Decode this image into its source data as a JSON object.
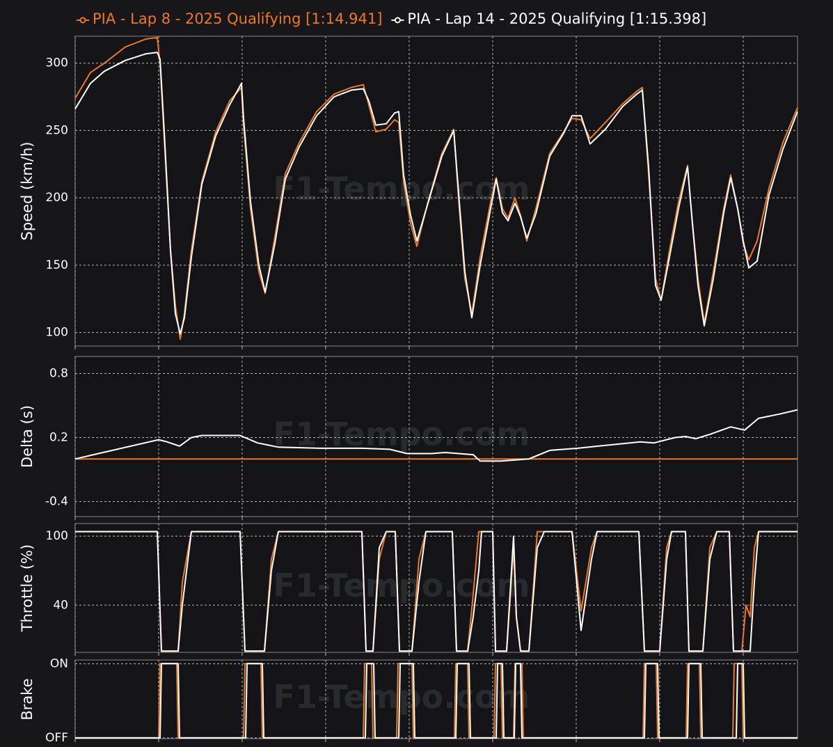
{
  "watermark": "F1-Tempo.com",
  "chart_data": [
    {
      "type": "line",
      "ylabel": "Speed (km/h)",
      "grid": true,
      "xlim": [
        0,
        5190
      ],
      "xticks": [
        0,
        600,
        1200,
        1800,
        2400,
        3000,
        3600,
        4200,
        4800
      ],
      "ylim": [
        90,
        320
      ],
      "yticks": [
        100,
        150,
        200,
        250,
        300
      ],
      "x": [
        0,
        110,
        210,
        360,
        510,
        590,
        610,
        640,
        685,
        720,
        755,
        785,
        835,
        910,
        1010,
        1110,
        1195,
        1210,
        1260,
        1320,
        1365,
        1435,
        1510,
        1610,
        1735,
        1860,
        1985,
        2070,
        2110,
        2160,
        2235,
        2295,
        2325,
        2360,
        2410,
        2455,
        2535,
        2635,
        2720,
        2760,
        2800,
        2850,
        2910,
        2985,
        3025,
        3070,
        3110,
        3160,
        3200,
        3245,
        3310,
        3410,
        3510,
        3570,
        3635,
        3700,
        3810,
        3935,
        4035,
        4075,
        4120,
        4170,
        4210,
        4270,
        4335,
        4400,
        4435,
        4475,
        4520,
        4585,
        4660,
        4710,
        4760,
        4800,
        4840,
        4900,
        4985,
        5085,
        5190
      ],
      "series": [
        {
          "name": "PIA - Lap 8 - 2025 Qualifying [1:14.941]",
          "color": "#f0781e",
          "values": [
            274,
            293,
            300,
            312,
            318,
            319,
            300,
            244,
            161,
            120,
            95,
            114,
            161,
            212,
            249,
            272,
            282,
            254,
            192,
            145,
            129,
            171,
            218,
            241,
            264,
            277,
            282,
            284,
            269,
            249,
            251,
            258,
            256,
            212,
            181,
            164,
            197,
            233,
            251,
            192,
            140,
            114,
            156,
            197,
            215,
            192,
            185,
            200,
            187,
            168,
            192,
            233,
            249,
            259,
            258,
            244,
            256,
            270,
            279,
            282,
            218,
            140,
            124,
            161,
            197,
            224,
            181,
            140,
            107,
            145,
            192,
            217,
            192,
            166,
            154,
            168,
            207,
            241,
            267
          ]
        },
        {
          "name": "PIA - Lap 14 - 2025 Qualifying [1:15.398]",
          "color": "#ffffff",
          "values": [
            266,
            285,
            294,
            302,
            307,
            308,
            303,
            249,
            161,
            114,
            99,
            111,
            156,
            210,
            246,
            269,
            285,
            259,
            197,
            150,
            130,
            166,
            214,
            238,
            261,
            275,
            280,
            281,
            272,
            254,
            255,
            263,
            264,
            217,
            187,
            168,
            196,
            231,
            250,
            197,
            145,
            111,
            150,
            192,
            214,
            189,
            183,
            196,
            186,
            170,
            188,
            231,
            248,
            261,
            261,
            240,
            251,
            268,
            277,
            280,
            223,
            135,
            124,
            156,
            192,
            223,
            181,
            135,
            105,
            140,
            189,
            215,
            192,
            168,
            148,
            153,
            202,
            236,
            264
          ]
        }
      ]
    },
    {
      "type": "line",
      "ylabel": "Delta (s)",
      "grid": true,
      "xlim": [
        0,
        5190
      ],
      "xticks": [
        0,
        600,
        1200,
        1800,
        2400,
        3000,
        3600,
        4200,
        4800
      ],
      "ylim": [
        -0.54,
        0.96
      ],
      "yticks": [
        -0.4,
        0.2,
        0.8
      ],
      "x": [
        0,
        600,
        660,
        750,
        835,
        910,
        1185,
        1310,
        1460,
        1760,
        2060,
        2260,
        2385,
        2560,
        2660,
        2860,
        2910,
        3060,
        3260,
        3410,
        3610,
        3760,
        4060,
        4160,
        4310,
        4385,
        4460,
        4560,
        4710,
        4810,
        4910,
        5060,
        5190
      ],
      "series": [
        {
          "color": "#f0781e",
          "values": [
            0,
            0,
            0,
            0,
            0,
            0,
            0,
            0,
            0,
            0,
            0,
            0,
            0,
            0,
            0,
            0,
            0,
            0,
            0,
            0,
            0,
            0,
            0,
            0,
            0,
            0,
            0,
            0,
            0,
            0,
            0,
            0,
            0
          ]
        },
        {
          "color": "#ffffff",
          "values": [
            0,
            0.18,
            0.16,
            0.12,
            0.2,
            0.22,
            0.22,
            0.15,
            0.11,
            0.1,
            0.1,
            0.09,
            0.05,
            0.05,
            0.06,
            0.04,
            -0.02,
            -0.02,
            0.0,
            0.08,
            0.1,
            0.12,
            0.16,
            0.15,
            0.2,
            0.21,
            0.19,
            0.23,
            0.3,
            0.27,
            0.38,
            0.42,
            0.46
          ]
        }
      ]
    },
    {
      "type": "line",
      "ylabel": "Throttle (%)",
      "grid": true,
      "xlim": [
        0,
        5190
      ],
      "xticks": [
        0,
        600,
        1200,
        1800,
        2400,
        3000,
        3600,
        4200,
        4800
      ],
      "ylim": [
        -1,
        111
      ],
      "yticks": [
        40,
        100
      ],
      "x": [
        0,
        590,
        620,
        740,
        770,
        835,
        1185,
        1220,
        1360,
        1410,
        1460,
        2060,
        2090,
        2140,
        2185,
        2235,
        2300,
        2330,
        2420,
        2470,
        2520,
        2710,
        2740,
        2820,
        2860,
        2900,
        2920,
        3000,
        3020,
        3100,
        3150,
        3170,
        3200,
        3260,
        3320,
        3370,
        3570,
        3635,
        3710,
        3750,
        4050,
        4090,
        4200,
        4250,
        4285,
        4385,
        4410,
        4510,
        4560,
        4610,
        4700,
        4730,
        4790,
        4820,
        4850,
        4880,
        4910,
        5190
      ],
      "series": [
        {
          "color": "#f0781e",
          "values": [
            104,
            104,
            0,
            0,
            60,
            104,
            104,
            0,
            0,
            80,
            104,
            104,
            0,
            0,
            80,
            104,
            104,
            0,
            0,
            80,
            104,
            104,
            0,
            0,
            50,
            104,
            104,
            104,
            0,
            0,
            90,
            30,
            0,
            0,
            104,
            104,
            104,
            35,
            90,
            104,
            104,
            0,
            0,
            90,
            104,
            104,
            0,
            0,
            90,
            104,
            104,
            0,
            0,
            40,
            30,
            90,
            104,
            104
          ]
        },
        {
          "color": "#ffffff",
          "values": [
            104,
            104,
            0,
            0,
            40,
            104,
            104,
            0,
            0,
            70,
            104,
            104,
            0,
            0,
            90,
            104,
            104,
            0,
            0,
            60,
            104,
            104,
            0,
            0,
            30,
            70,
            104,
            104,
            0,
            0,
            100,
            30,
            0,
            0,
            90,
            104,
            104,
            18,
            80,
            104,
            104,
            0,
            0,
            80,
            104,
            104,
            0,
            0,
            80,
            104,
            104,
            0,
            0,
            0,
            0,
            60,
            104,
            104
          ]
        }
      ]
    },
    {
      "type": "line",
      "ylabel": "Brake",
      "grid": true,
      "xlim": [
        0,
        5190
      ],
      "xticks": [
        0,
        600,
        1200,
        1800,
        2400,
        3000,
        3600,
        4200,
        4800
      ],
      "ylim": [
        -0.01,
        1.05
      ],
      "yticks": [
        {
          "value": 0,
          "label": "OFF"
        },
        {
          "value": 1,
          "label": "ON"
        }
      ],
      "series": [
        {
          "color": "#f0781e",
          "x": [
            0,
            600,
            610,
            730,
            740,
            1210,
            1220,
            1335,
            1345,
            2070,
            2080,
            2130,
            2140,
            2310,
            2320,
            2420,
            2430,
            2725,
            2735,
            2820,
            2830,
            3010,
            3020,
            3060,
            3070,
            3150,
            3160,
            3210,
            3220,
            4080,
            4090,
            4175,
            4185,
            4390,
            4400,
            4485,
            4495,
            4725,
            4735,
            4790,
            4800,
            5190
          ],
          "values": [
            0,
            0,
            1,
            1,
            0,
            0,
            1,
            1,
            0,
            0,
            1,
            1,
            0,
            0,
            1,
            1,
            0,
            0,
            1,
            1,
            0,
            0,
            1,
            1,
            0,
            0,
            1,
            1,
            0,
            0,
            1,
            1,
            0,
            0,
            1,
            1,
            0,
            0,
            1,
            1,
            0,
            0
          ]
        },
        {
          "color": "#ffffff",
          "x": [
            0,
            610,
            620,
            740,
            750,
            1225,
            1235,
            1345,
            1355,
            2085,
            2095,
            2145,
            2155,
            2325,
            2335,
            2430,
            2440,
            2735,
            2745,
            2830,
            2840,
            3025,
            3035,
            3070,
            3080,
            3155,
            3165,
            3200,
            3210,
            4090,
            4100,
            4185,
            4195,
            4400,
            4410,
            4495,
            4505,
            4750,
            4760,
            4800,
            4810,
            5190
          ],
          "values": [
            0,
            0,
            1,
            1,
            0,
            0,
            1,
            1,
            0,
            0,
            1,
            1,
            0,
            0,
            1,
            1,
            0,
            0,
            1,
            1,
            0,
            0,
            1,
            1,
            0,
            0,
            1,
            1,
            0,
            0,
            1,
            1,
            0,
            0,
            1,
            1,
            0,
            0,
            1,
            1,
            0,
            0
          ]
        }
      ]
    }
  ]
}
